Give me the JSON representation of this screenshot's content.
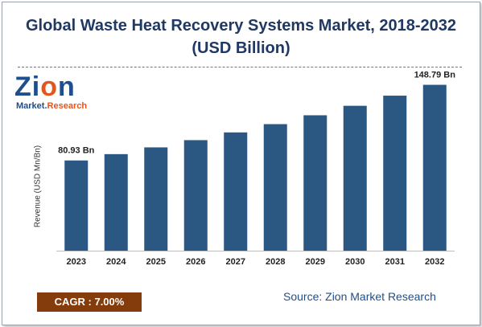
{
  "title_line1": "Global Waste Heat Recovery Systems Market, 2018-2032",
  "title_line2": "(USD Billion)",
  "logo": {
    "brand": "Zion",
    "sub_market": "Market.",
    "sub_research": "Research"
  },
  "cagr_label": "CAGR : 7.00%",
  "source": "Source: Zion Market Research",
  "colors": {
    "bar": "#2b5783",
    "title": "#1f3864",
    "cagr_bg": "#843c0c"
  },
  "chart_data": {
    "type": "bar",
    "categories": [
      "2023",
      "2024",
      "2025",
      "2026",
      "2027",
      "2028",
      "2029",
      "2030",
      "2031",
      "2032"
    ],
    "values": [
      80.93,
      86.6,
      92.66,
      99.15,
      106.09,
      113.52,
      121.46,
      129.97,
      139.06,
      148.79
    ],
    "data_labels": [
      "80.93 Bn",
      "",
      "",
      "",
      "",
      "",
      "",
      "",
      "",
      "148.79 Bn"
    ],
    "ylabel": "Revenue (USD Mn/Bn)",
    "xlabel": "",
    "ylim": [
      0,
      160
    ],
    "grid": false,
    "legend": "none"
  }
}
